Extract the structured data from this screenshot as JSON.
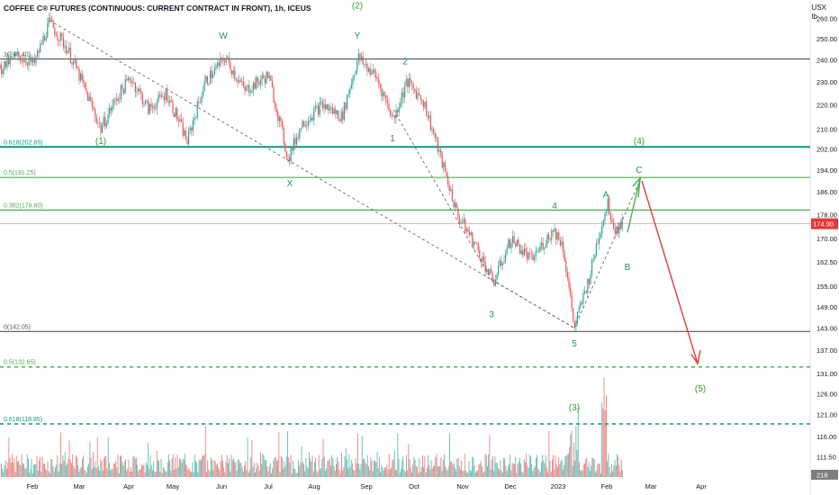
{
  "header": {
    "title": "COFFEE C® FUTURES (CONTINUOUS: CURRENT CONTRACT IN FRONT), 1h, ICEUS",
    "currency": "USX",
    "unit": "lb"
  },
  "colors": {
    "up": "#26a69a",
    "down": "#ef5350",
    "green_level": "#4caf50",
    "teal_level": "#089981",
    "gray_level": "#555555",
    "wave_green": "#2e9d2e",
    "wave_teal": "#1f8a8a",
    "projection": "#e53935",
    "price_tag": "#e53935"
  },
  "chart_data": {
    "type": "candlestick",
    "x_ticks": [
      "Feb",
      "Mar",
      "Apr",
      "May",
      "Jun",
      "Jul",
      "Aug",
      "Sep",
      "Oct",
      "Nov",
      "Dec",
      "2023",
      "Feb",
      "Mar",
      "Apr"
    ],
    "y_ticks": [
      "260.00",
      "250.00",
      "240.00",
      "230.00",
      "220.00",
      "210.00",
      "202.00",
      "194.00",
      "186.00",
      "178.00",
      "170.00",
      "162.50",
      "155.00",
      "149.00",
      "143.00",
      "137.00",
      "131.00",
      "126.00",
      "121.00",
      "116.00",
      "111.50",
      "107.25"
    ],
    "y_range": [
      104.5,
      268
    ],
    "y_scale": "log",
    "last_price": "174.90",
    "volume_label": "218",
    "fib_levels": [
      {
        "label": "1(240.40)",
        "value": 240.4,
        "color": "gray",
        "style": "solid"
      },
      {
        "label": "0.618(202.85)",
        "value": 202.85,
        "color": "teal",
        "style": "solid"
      },
      {
        "label": "0.5(191.25)",
        "value": 191.25,
        "color": "green",
        "style": "solid"
      },
      {
        "label": "0.382(179.60)",
        "value": 179.6,
        "color": "green",
        "style": "solid"
      },
      {
        "label": "0(142.05)",
        "value": 142.05,
        "color": "gray",
        "style": "solid"
      },
      {
        "label": "0.5(132.65)",
        "value": 132.65,
        "color": "green",
        "style": "dashed"
      },
      {
        "label": "0.618(118.85)",
        "value": 118.85,
        "color": "teal",
        "style": "dashed"
      }
    ],
    "price_path": [
      {
        "t": 0,
        "p": 236
      },
      {
        "t": 20,
        "p": 242
      },
      {
        "t": 38,
        "p": 238
      },
      {
        "t": 55,
        "p": 258
      },
      {
        "t": 75,
        "p": 245
      },
      {
        "t": 95,
        "p": 226
      },
      {
        "t": 112,
        "p": 210
      },
      {
        "t": 128,
        "p": 222
      },
      {
        "t": 145,
        "p": 232
      },
      {
        "t": 165,
        "p": 218
      },
      {
        "t": 185,
        "p": 225
      },
      {
        "t": 208,
        "p": 205
      },
      {
        "t": 228,
        "p": 230
      },
      {
        "t": 250,
        "p": 241
      },
      {
        "t": 272,
        "p": 226
      },
      {
        "t": 298,
        "p": 233
      },
      {
        "t": 320,
        "p": 198
      },
      {
        "t": 335,
        "p": 212
      },
      {
        "t": 358,
        "p": 220
      },
      {
        "t": 380,
        "p": 215
      },
      {
        "t": 398,
        "p": 241
      },
      {
        "t": 418,
        "p": 232
      },
      {
        "t": 437,
        "p": 214
      },
      {
        "t": 452,
        "p": 230
      },
      {
        "t": 470,
        "p": 222
      },
      {
        "t": 490,
        "p": 198
      },
      {
        "t": 508,
        "p": 178
      },
      {
        "t": 528,
        "p": 168
      },
      {
        "t": 548,
        "p": 156
      },
      {
        "t": 568,
        "p": 170
      },
      {
        "t": 590,
        "p": 163
      },
      {
        "t": 615,
        "p": 173
      },
      {
        "t": 625,
        "p": 168
      },
      {
        "t": 638,
        "p": 143
      },
      {
        "t": 655,
        "p": 158
      },
      {
        "t": 665,
        "p": 171
      },
      {
        "t": 675,
        "p": 182
      },
      {
        "t": 683,
        "p": 173
      },
      {
        "t": 692,
        "p": 175
      }
    ],
    "wave_labels": [
      {
        "text": "(2)",
        "t": 397,
        "p": 265,
        "color": "green"
      },
      {
        "text": "W",
        "t": 248,
        "p": 250,
        "color": "teal"
      },
      {
        "text": "Y",
        "t": 397,
        "p": 250,
        "color": "teal"
      },
      {
        "text": "2",
        "t": 450,
        "p": 238,
        "color": "teal"
      },
      {
        "text": "(1)",
        "t": 112,
        "p": 204,
        "color": "green"
      },
      {
        "text": "1",
        "t": 436,
        "p": 205,
        "color": "teal"
      },
      {
        "text": "X",
        "t": 322,
        "p": 188,
        "color": "teal"
      },
      {
        "text": "(4)",
        "t": 710,
        "p": 204,
        "color": "green"
      },
      {
        "text": "C",
        "t": 710,
        "p": 193,
        "color": "teal"
      },
      {
        "text": "A",
        "t": 673,
        "p": 184,
        "color": "teal"
      },
      {
        "text": "4",
        "t": 616,
        "p": 180,
        "color": "teal"
      },
      {
        "text": "B",
        "t": 697,
        "p": 160,
        "color": "teal"
      },
      {
        "text": "3",
        "t": 546,
        "p": 146,
        "color": "teal"
      },
      {
        "text": "5",
        "t": 638,
        "p": 138,
        "color": "teal"
      },
      {
        "text": "(5)",
        "t": 778,
        "p": 126.5,
        "color": "green"
      },
      {
        "text": "(3)",
        "t": 638,
        "p": 122,
        "color": "green"
      }
    ]
  }
}
